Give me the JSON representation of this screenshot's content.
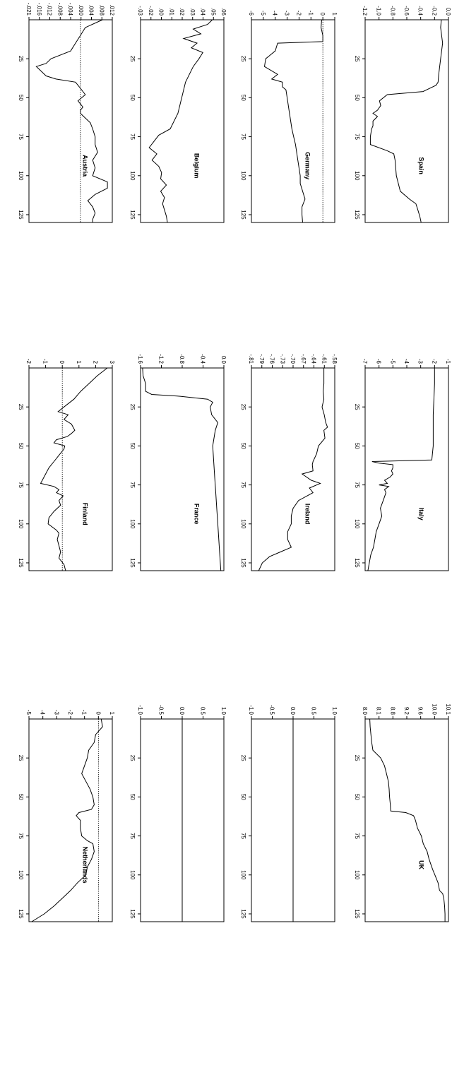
{
  "chart_data": [
    {
      "type": "line",
      "title": "Austria",
      "x": [
        0,
        5,
        10,
        15,
        20,
        25,
        28,
        30,
        33,
        36,
        38,
        40,
        44,
        48,
        52,
        56,
        58,
        60,
        63,
        66,
        70,
        75,
        80,
        85,
        90,
        95,
        100,
        104,
        108,
        112,
        116,
        120,
        124,
        128,
        130
      ],
      "values": [
        0.009,
        0.002,
        0.0,
        -0.002,
        -0.004,
        -0.012,
        -0.014,
        -0.018,
        -0.016,
        -0.014,
        -0.01,
        -0.002,
        0.0,
        0.002,
        -0.001,
        0.001,
        0.0,
        0.0,
        0.002,
        0.004,
        0.005,
        0.006,
        0.006,
        0.007,
        0.005,
        0.006,
        0.005,
        0.011,
        0.011,
        0.006,
        0.003,
        0.005,
        0.006,
        0.005,
        0.005
      ],
      "yticks": [
        "-.021",
        "-.016",
        "-.012",
        "-.008",
        "-.004",
        ".000",
        ".004",
        ".008",
        ".012"
      ],
      "ylim": [
        -0.021,
        0.013
      ],
      "ref": 0,
      "xlim": [
        0,
        130
      ],
      "xticks": [
        25,
        50,
        75,
        100,
        125
      ]
    },
    {
      "type": "line",
      "title": "Belgium",
      "x": [
        0,
        3,
        6,
        9,
        12,
        15,
        18,
        21,
        25,
        30,
        40,
        50,
        60,
        70,
        74,
        78,
        82,
        86,
        90,
        94,
        98,
        102,
        106,
        110,
        114,
        118,
        122,
        126,
        130
      ],
      "values": [
        0.05,
        0.045,
        0.03,
        0.038,
        0.02,
        0.034,
        0.028,
        0.04,
        0.036,
        0.03,
        0.022,
        0.018,
        0.014,
        0.006,
        -0.006,
        -0.011,
        -0.016,
        -0.008,
        -0.013,
        -0.006,
        -0.003,
        -0.004,
        0.002,
        -0.004,
        0.0,
        -0.002,
        0.0,
        0.002,
        0.003
      ],
      "yticks": [
        "-.03",
        "-.02",
        ".00",
        ".01",
        ".02",
        ".03",
        ".04",
        ".05",
        ".06"
      ],
      "ylim": [
        -0.025,
        0.062
      ],
      "ref": null,
      "xlim": [
        0,
        130
      ],
      "xticks": [
        25,
        50,
        75,
        100,
        125
      ]
    },
    {
      "type": "line",
      "title": "Germany",
      "x": [
        0,
        5,
        10,
        14,
        15,
        20,
        25,
        30,
        35,
        38,
        40,
        43,
        45,
        50,
        60,
        70,
        75,
        80,
        90,
        100,
        105,
        110,
        115,
        120,
        125,
        130
      ],
      "values": [
        -0.1,
        -0.15,
        0.0,
        0.0,
        -3.8,
        -4.0,
        -4.8,
        -4.9,
        -3.8,
        -4.3,
        -3.4,
        -3.4,
        -3.1,
        -3.0,
        -2.8,
        -2.6,
        -2.45,
        -2.3,
        -2.1,
        -1.9,
        -1.9,
        -1.7,
        -1.5,
        -1.75,
        -1.75,
        -1.7
      ],
      "yticks": [
        "-6",
        "-5",
        "-4",
        "-3",
        "-2",
        "-1",
        "0",
        "1"
      ],
      "ylim": [
        -6,
        1
      ],
      "ref": 0,
      "xlim": [
        0,
        130
      ],
      "xticks": [
        25,
        50,
        75,
        100,
        125
      ]
    },
    {
      "type": "line",
      "title": "Spain",
      "x": [
        0,
        5,
        15,
        25,
        35,
        40,
        42,
        46,
        48,
        52,
        55,
        58,
        60,
        62,
        65,
        68,
        70,
        75,
        80,
        84,
        86,
        90,
        100,
        110,
        115,
        118,
        122,
        126,
        130
      ],
      "values": [
        -0.07,
        -0.08,
        -0.05,
        -0.08,
        -0.11,
        -0.12,
        -0.15,
        -0.35,
        -0.9,
        -1.02,
        -1.0,
        -1.05,
        -1.12,
        -1.05,
        -1.12,
        -1.12,
        -1.14,
        -1.16,
        -1.16,
        -0.9,
        -0.8,
        -0.78,
        -0.76,
        -0.7,
        -0.56,
        -0.46,
        -0.43,
        -0.4,
        -0.38
      ],
      "yticks": [
        "-1.2",
        "-1.0",
        "-0.8",
        "-0.6",
        "-0.4",
        "-0.2",
        "0.0"
      ],
      "ylim": [
        -1.24,
        0.04
      ],
      "ref": null,
      "xlim": [
        0,
        130
      ],
      "xticks": [
        25,
        50,
        75,
        100,
        125
      ]
    },
    {
      "type": "line",
      "title": "Finland",
      "x": [
        0,
        5,
        10,
        15,
        20,
        25,
        28,
        30,
        33,
        36,
        40,
        42,
        44,
        46,
        48,
        50,
        52,
        56,
        60,
        64,
        68,
        72,
        74,
        76,
        78,
        80,
        82,
        85,
        88,
        92,
        96,
        100,
        104,
        106,
        110,
        114,
        118,
        122,
        126,
        130
      ],
      "values": [
        2.7,
        2.1,
        1.6,
        1.1,
        0.7,
        0.1,
        -0.25,
        0.35,
        0.1,
        0.55,
        0.75,
        0.55,
        0.3,
        -0.35,
        -0.5,
        0.15,
        0.1,
        -0.2,
        -0.5,
        -0.8,
        -1.0,
        -1.2,
        -1.3,
        -0.5,
        -0.2,
        -0.35,
        0.05,
        -0.2,
        -0.1,
        -0.5,
        -0.8,
        -0.85,
        -0.35,
        -0.2,
        -0.3,
        -0.2,
        -0.1,
        -0.2,
        0.1,
        0.2
      ],
      "yticks": [
        "-2",
        "-1",
        "0",
        "1",
        "2",
        "3"
      ],
      "ylim": [
        -2,
        3
      ],
      "ref": 0,
      "xlim": [
        0,
        130
      ],
      "xticks": [
        25,
        50,
        75,
        100,
        125
      ]
    },
    {
      "type": "line",
      "title": "France",
      "x": [
        0,
        5,
        10,
        15,
        17,
        18,
        20,
        22,
        25,
        30,
        35,
        40,
        50,
        60,
        70,
        80,
        90,
        100,
        110,
        120,
        130
      ],
      "values": [
        -1.58,
        -1.57,
        -1.52,
        -1.52,
        -1.4,
        -0.9,
        -0.3,
        -0.2,
        -0.25,
        -0.22,
        -0.1,
        -0.15,
        -0.2,
        -0.18,
        -0.16,
        -0.14,
        -0.12,
        -0.1,
        -0.08,
        -0.06,
        -0.04
      ],
      "yticks": [
        "-1.6",
        "-1.2",
        "-0.8",
        "-0.4",
        "0.0"
      ],
      "ylim": [
        -1.62,
        0.02
      ],
      "ref": null,
      "xlim": [
        0,
        130
      ],
      "xticks": [
        25,
        50,
        75,
        100,
        125
      ]
    },
    {
      "type": "line",
      "title": "Ireland",
      "x": [
        0,
        5,
        10,
        15,
        20,
        25,
        30,
        35,
        38,
        40,
        45,
        50,
        55,
        60,
        62,
        66,
        68,
        72,
        74,
        77,
        80,
        85,
        90,
        95,
        100,
        105,
        110,
        115,
        118,
        121,
        125,
        130
      ],
      "values": [
        -0.61,
        -0.61,
        -0.61,
        -0.612,
        -0.61,
        -0.615,
        -0.609,
        -0.605,
        -0.6,
        -0.61,
        -0.607,
        -0.625,
        -0.63,
        -0.64,
        -0.642,
        -0.64,
        -0.67,
        -0.645,
        -0.62,
        -0.65,
        -0.64,
        -0.68,
        -0.695,
        -0.7,
        -0.7,
        -0.71,
        -0.71,
        -0.7,
        -0.73,
        -0.76,
        -0.78,
        -0.79
      ],
      "yticks": [
        "-.81",
        "-.79",
        "-.76",
        "-.73",
        "-.70",
        "-.67",
        "-.64",
        "-.61",
        "-.58"
      ],
      "ylim": [
        -0.81,
        -0.58
      ],
      "ref": null,
      "xlim": [
        0,
        130
      ],
      "xticks": [
        25,
        50,
        75,
        100,
        125
      ]
    },
    {
      "type": "line",
      "title": "Italy",
      "x": [
        0,
        10,
        20,
        30,
        40,
        50,
        59,
        60,
        61,
        62,
        64,
        66,
        68,
        70,
        72,
        74,
        75,
        76,
        78,
        80,
        85,
        90,
        95,
        100,
        105,
        110,
        115,
        120,
        125,
        130
      ],
      "values": [
        -2.0,
        -2.0,
        -2.05,
        -2.1,
        -2.1,
        -2.1,
        -2.2,
        -6.5,
        -6.0,
        -5.0,
        -5.0,
        -5.1,
        -5.0,
        -5.2,
        -5.6,
        -5.4,
        -6.0,
        -5.3,
        -5.6,
        -5.5,
        -5.7,
        -5.9,
        -5.8,
        -6.0,
        -6.2,
        -6.3,
        -6.4,
        -6.6,
        -6.7,
        -6.8
      ],
      "yticks": [
        "-7",
        "-6",
        "-5",
        "-4",
        "-3",
        "-2",
        "-1"
      ],
      "ylim": [
        -7,
        -1
      ],
      "ref": null,
      "xlim": [
        0,
        130
      ],
      "xticks": [
        25,
        50,
        75,
        100,
        125
      ]
    },
    {
      "type": "line",
      "title": "Netherlands",
      "x": [
        0,
        5,
        10,
        15,
        20,
        25,
        30,
        35,
        40,
        45,
        50,
        55,
        58,
        60,
        62,
        65,
        70,
        75,
        78,
        80,
        85,
        90,
        95,
        100,
        105,
        110,
        115,
        120,
        125,
        130
      ],
      "values": [
        0.2,
        0.3,
        -0.2,
        -0.3,
        -0.7,
        -0.8,
        -1.0,
        -1.2,
        -0.9,
        -0.6,
        -0.4,
        -0.3,
        -0.5,
        -1.4,
        -1.6,
        -1.3,
        -1.3,
        -1.2,
        -0.8,
        -0.4,
        -0.3,
        -0.5,
        -0.8,
        -0.9,
        -1.5,
        -2.0,
        -2.6,
        -3.2,
        -3.9,
        -4.8
      ],
      "yticks": [
        "-5",
        "-4",
        "-3",
        "-2",
        "-1",
        "0",
        "1"
      ],
      "ylim": [
        -5,
        1
      ],
      "ref": 0,
      "xlim": [
        0,
        130
      ],
      "xticks": [
        25,
        50,
        75,
        100,
        125
      ]
    },
    {
      "type": "line",
      "title": "",
      "x": [
        0,
        130
      ],
      "values": [
        0,
        0
      ],
      "yticks": [
        "-1.0",
        "-0.5",
        "0.0",
        "0.5",
        "1.0"
      ],
      "ylim": [
        -1,
        1
      ],
      "ref": null,
      "xlim": [
        0,
        130
      ],
      "xticks": [
        25,
        50,
        75,
        100,
        125
      ]
    },
    {
      "type": "line",
      "title": "",
      "x": [
        0,
        130
      ],
      "values": [
        0,
        0
      ],
      "yticks": [
        "-1.0",
        "-0.5",
        "0.0",
        "0.5",
        "1.0"
      ],
      "ylim": [
        -1,
        1
      ],
      "ref": null,
      "xlim": [
        0,
        130
      ],
      "xticks": [
        25,
        50,
        75,
        100,
        125
      ]
    },
    {
      "type": "line",
      "title": "UK",
      "x": [
        0,
        5,
        10,
        15,
        20,
        25,
        30,
        35,
        40,
        45,
        50,
        55,
        59,
        60,
        62,
        65,
        70,
        75,
        80,
        85,
        90,
        95,
        97,
        100,
        105,
        110,
        112,
        115,
        120,
        125,
        130
      ],
      "values": [
        8.12,
        8.13,
        8.15,
        8.17,
        8.2,
        8.4,
        8.5,
        8.55,
        8.6,
        8.62,
        8.63,
        8.65,
        8.66,
        9.05,
        9.25,
        9.3,
        9.35,
        9.45,
        9.5,
        9.6,
        9.65,
        9.72,
        9.75,
        9.8,
        9.88,
        9.92,
        10.0,
        10.03,
        10.05,
        10.06,
        10.06
      ],
      "yticks": [
        "8.0",
        "8.1",
        "8.8",
        "9.2",
        "9.6",
        "10.0",
        "10.1"
      ],
      "ylim": [
        8.0,
        10.15
      ],
      "ref": null,
      "xlim": [
        0,
        130
      ],
      "xticks": [
        25,
        50,
        75,
        100,
        125
      ]
    }
  ]
}
